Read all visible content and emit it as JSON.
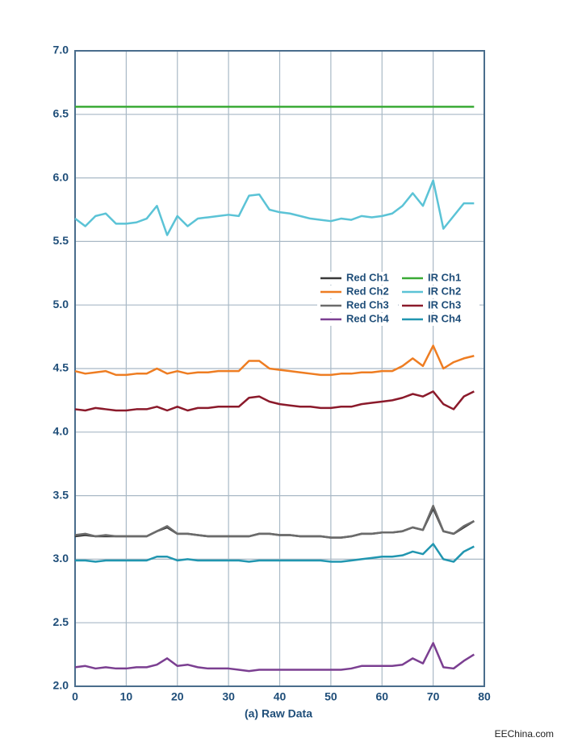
{
  "chart_data": {
    "type": "line",
    "xlabel": "(a) Raw Data",
    "watermark": "EEChina.com",
    "x": [
      0,
      2,
      4,
      6,
      8,
      10,
      12,
      14,
      16,
      18,
      20,
      22,
      24,
      26,
      28,
      30,
      32,
      34,
      36,
      38,
      40,
      42,
      44,
      46,
      48,
      50,
      52,
      54,
      56,
      58,
      60,
      62,
      64,
      66,
      68,
      70,
      72,
      74,
      76,
      78
    ],
    "xlim": [
      0,
      80
    ],
    "xticks": [
      0,
      10,
      20,
      30,
      40,
      50,
      60,
      70,
      80
    ],
    "ylim": [
      2,
      7
    ],
    "yticks": [
      {
        "value": 2,
        "label": "2.0"
      },
      2.5,
      {
        "value": 3,
        "label": "3.0"
      },
      3.5,
      {
        "value": 4,
        "label": "4.0"
      },
      4.5,
      {
        "value": 5,
        "label": "5.0"
      },
      5.5,
      {
        "value": 6,
        "label": "6.0"
      },
      6.5,
      {
        "value": 7,
        "label": "7.0"
      }
    ],
    "grid": true,
    "legend": "right",
    "series": [
      {
        "name": "Red Ch1",
        "color": "#3a3a3a",
        "values": [
          3.18,
          3.19,
          3.18,
          3.18,
          3.18,
          3.18,
          3.18,
          3.18,
          3.22,
          3.25,
          3.2,
          3.2,
          3.19,
          3.18,
          3.18,
          3.18,
          3.18,
          3.18,
          3.2,
          3.2,
          3.19,
          3.19,
          3.18,
          3.18,
          3.18,
          3.17,
          3.17,
          3.18,
          3.2,
          3.2,
          3.21,
          3.21,
          3.22,
          3.25,
          3.23,
          3.4,
          3.22,
          3.2,
          3.25,
          3.3
        ]
      },
      {
        "name": "IR Ch1",
        "color": "#3aaa35",
        "values": [
          6.56,
          6.56,
          6.56,
          6.56,
          6.56,
          6.56,
          6.56,
          6.56,
          6.56,
          6.56,
          6.56,
          6.56,
          6.56,
          6.56,
          6.56,
          6.56,
          6.56,
          6.56,
          6.56,
          6.56,
          6.56,
          6.56,
          6.56,
          6.56,
          6.56,
          6.56,
          6.56,
          6.56,
          6.56,
          6.56,
          6.56,
          6.56,
          6.56,
          6.56,
          6.56,
          6.56,
          6.56,
          6.56,
          6.56,
          6.56
        ]
      },
      {
        "name": "Red Ch2",
        "color": "#ee7d22",
        "values": [
          4.48,
          4.46,
          4.47,
          4.48,
          4.45,
          4.45,
          4.46,
          4.46,
          4.5,
          4.46,
          4.48,
          4.46,
          4.47,
          4.47,
          4.48,
          4.48,
          4.48,
          4.56,
          4.56,
          4.5,
          4.49,
          4.48,
          4.47,
          4.46,
          4.45,
          4.45,
          4.46,
          4.46,
          4.47,
          4.47,
          4.48,
          4.48,
          4.52,
          4.58,
          4.52,
          4.68,
          4.5,
          4.55,
          4.58,
          4.6
        ]
      },
      {
        "name": "IR Ch2",
        "color": "#5bc3d6",
        "values": [
          5.68,
          5.62,
          5.7,
          5.72,
          5.64,
          5.64,
          5.65,
          5.68,
          5.78,
          5.55,
          5.7,
          5.62,
          5.68,
          5.69,
          5.7,
          5.71,
          5.7,
          5.86,
          5.87,
          5.75,
          5.73,
          5.72,
          5.7,
          5.68,
          5.67,
          5.66,
          5.68,
          5.67,
          5.7,
          5.69,
          5.7,
          5.72,
          5.78,
          5.88,
          5.78,
          5.98,
          5.6,
          5.7,
          5.8,
          5.8
        ]
      },
      {
        "name": "Red Ch3",
        "color": "#6b6b6b",
        "values": [
          3.19,
          3.2,
          3.18,
          3.19,
          3.18,
          3.18,
          3.18,
          3.18,
          3.22,
          3.26,
          3.2,
          3.2,
          3.19,
          3.18,
          3.18,
          3.18,
          3.18,
          3.18,
          3.2,
          3.2,
          3.19,
          3.19,
          3.18,
          3.18,
          3.18,
          3.17,
          3.17,
          3.18,
          3.2,
          3.2,
          3.21,
          3.21,
          3.22,
          3.25,
          3.23,
          3.42,
          3.22,
          3.2,
          3.26,
          3.3
        ]
      },
      {
        "name": "IR Ch3",
        "color": "#8b1a2b",
        "values": [
          4.18,
          4.17,
          4.19,
          4.18,
          4.17,
          4.17,
          4.18,
          4.18,
          4.2,
          4.17,
          4.2,
          4.17,
          4.19,
          4.19,
          4.2,
          4.2,
          4.2,
          4.27,
          4.28,
          4.24,
          4.22,
          4.21,
          4.2,
          4.2,
          4.19,
          4.19,
          4.2,
          4.2,
          4.22,
          4.23,
          4.24,
          4.25,
          4.27,
          4.3,
          4.28,
          4.32,
          4.22,
          4.18,
          4.28,
          4.32
        ]
      },
      {
        "name": "Red Ch4",
        "color": "#7b3f91",
        "values": [
          2.15,
          2.16,
          2.14,
          2.15,
          2.14,
          2.14,
          2.15,
          2.15,
          2.17,
          2.22,
          2.16,
          2.17,
          2.15,
          2.14,
          2.14,
          2.14,
          2.13,
          2.12,
          2.13,
          2.13,
          2.13,
          2.13,
          2.13,
          2.13,
          2.13,
          2.13,
          2.13,
          2.14,
          2.16,
          2.16,
          2.16,
          2.16,
          2.17,
          2.22,
          2.18,
          2.34,
          2.15,
          2.14,
          2.2,
          2.25
        ]
      },
      {
        "name": "IR Ch4",
        "color": "#2196b0",
        "values": [
          2.99,
          2.99,
          2.98,
          2.99,
          2.99,
          2.99,
          2.99,
          2.99,
          3.02,
          3.02,
          2.99,
          3.0,
          2.99,
          2.99,
          2.99,
          2.99,
          2.99,
          2.98,
          2.99,
          2.99,
          2.99,
          2.99,
          2.99,
          2.99,
          2.99,
          2.98,
          2.98,
          2.99,
          3.0,
          3.01,
          3.02,
          3.02,
          3.03,
          3.06,
          3.04,
          3.12,
          3.0,
          2.98,
          3.06,
          3.1
        ]
      }
    ]
  }
}
